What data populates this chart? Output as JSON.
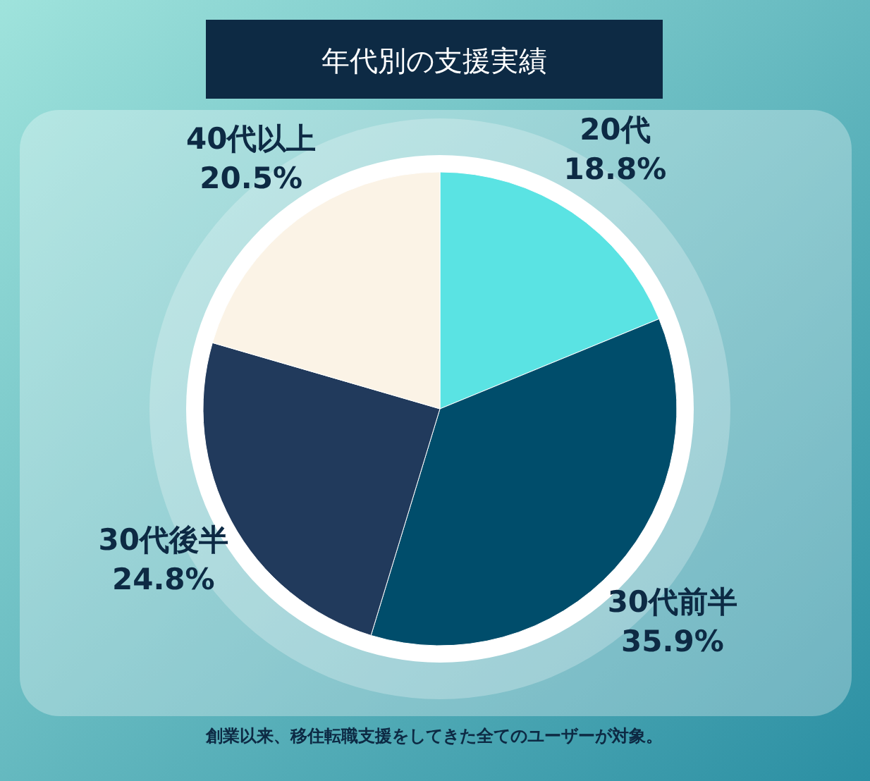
{
  "chart_data": {
    "type": "pie",
    "title": "年代別の支援実績",
    "categories": [
      "20代",
      "30代前半",
      "30代後半",
      "40代以上"
    ],
    "values": [
      18.8,
      35.9,
      24.8,
      20.5
    ],
    "colors": [
      "#5ae3e3",
      "#004d6b",
      "#213a5c",
      "#fbf3e6"
    ],
    "value_labels": [
      "18.8%",
      "35.9%",
      "24.8%",
      "20.5%"
    ],
    "annotations": [
      "創業以来、移住転職支援をしてきた全てのユーザーが対象。"
    ]
  }
}
